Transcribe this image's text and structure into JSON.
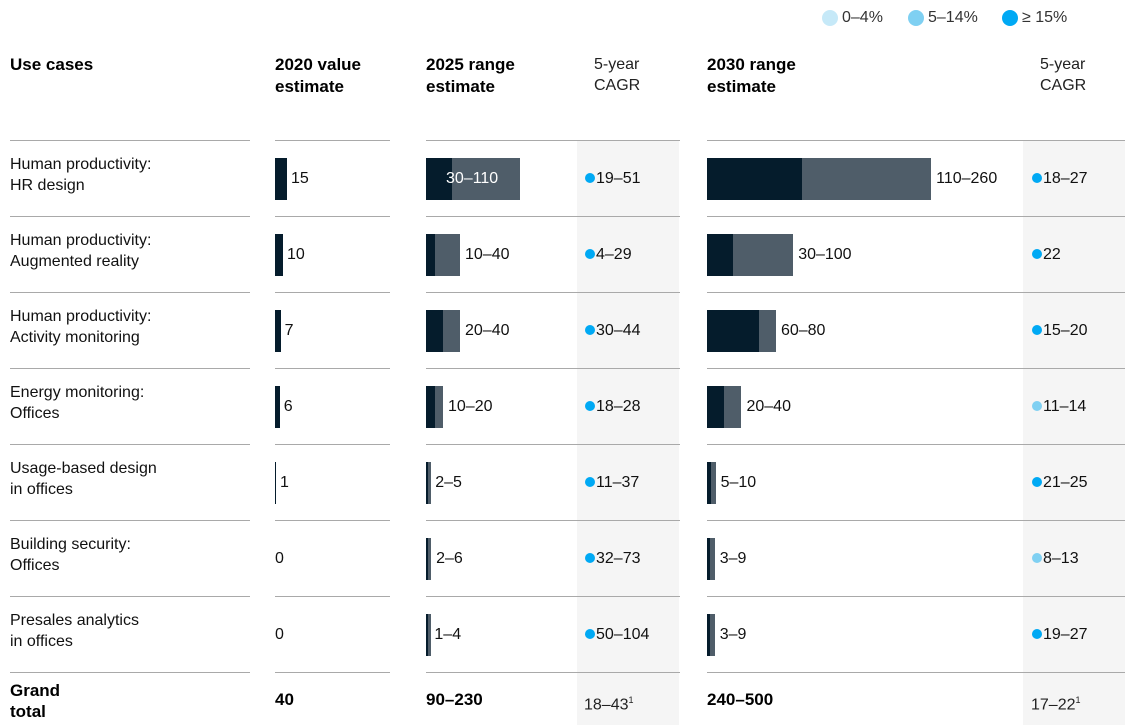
{
  "legend": [
    {
      "label": "0–4%",
      "color": "#c6e9f8"
    },
    {
      "label": "5–14%",
      "color": "#7fd0f2"
    },
    {
      "label": "≥ 15%",
      "color": "#00a9f4"
    }
  ],
  "headers": {
    "use_cases": "Use cases",
    "value2020": [
      "2020 value",
      "estimate"
    ],
    "range2025": [
      "2025 range",
      "estimate"
    ],
    "cagr2025": [
      "5-year",
      "CAGR"
    ],
    "range2030": [
      "2030 range",
      "estimate"
    ],
    "cagr2030": [
      "5-year",
      "CAGR"
    ]
  },
  "colors": {
    "bar_low": "#051c2c",
    "bar_high": "#4f5d69",
    "cagr_shade": "#f5f5f5"
  },
  "chart_data": {
    "type": "table",
    "columns": [
      "Use cases",
      "2020 value estimate",
      "2025 range estimate",
      "5-year CAGR",
      "2030 range estimate",
      "5-year CAGR"
    ],
    "rows": [
      {
        "label": [
          "Human productivity:",
          "HR design"
        ],
        "v2020": 15,
        "r2025": [
          30,
          110
        ],
        "r2025_text": "30–110",
        "c2025": "19–51",
        "c2025_band": "high",
        "r2030": [
          110,
          260
        ],
        "r2030_text": "110–260",
        "c2030": "18–27",
        "c2030_band": "high"
      },
      {
        "label": [
          "Human productivity:",
          "Augmented reality"
        ],
        "v2020": 10,
        "r2025": [
          10,
          40
        ],
        "r2025_text": "10–40",
        "c2025": "4–29",
        "c2025_band": "high",
        "r2030": [
          30,
          100
        ],
        "r2030_text": "30–100",
        "c2030": "22",
        "c2030_band": "high"
      },
      {
        "label": [
          "Human productivity:",
          "Activity monitoring"
        ],
        "v2020": 7,
        "r2025": [
          20,
          40
        ],
        "r2025_text": "20–40",
        "c2025": "30–44",
        "c2025_band": "high",
        "r2030": [
          60,
          80
        ],
        "r2030_text": "60–80",
        "c2030": "15–20",
        "c2030_band": "high"
      },
      {
        "label": [
          "Energy monitoring:",
          "Offices"
        ],
        "v2020": 6,
        "r2025": [
          10,
          20
        ],
        "r2025_text": "10–20",
        "c2025": "18–28",
        "c2025_band": "high",
        "r2030": [
          20,
          40
        ],
        "r2030_text": "20–40",
        "c2030": "11–14",
        "c2030_band": "mid"
      },
      {
        "label": [
          "Usage-based design",
          "in offices"
        ],
        "v2020": 1,
        "r2025": [
          2,
          5
        ],
        "r2025_text": "2–5",
        "c2025": "11–37",
        "c2025_band": "high",
        "r2030": [
          5,
          10
        ],
        "r2030_text": "5–10",
        "c2030": "21–25",
        "c2030_band": "high"
      },
      {
        "label": [
          "Building security:",
          "Offices"
        ],
        "v2020": 0,
        "r2025": [
          2,
          6
        ],
        "r2025_text": "2–6",
        "c2025": "32–73",
        "c2025_band": "high",
        "r2030": [
          3,
          9
        ],
        "r2030_text": "3–9",
        "c2030": "8–13",
        "c2030_band": "mid"
      },
      {
        "label": [
          "Presales analytics",
          "in offices"
        ],
        "v2020": 0,
        "r2025": [
          1,
          4
        ],
        "r2025_text": "1–4",
        "c2025": "50–104",
        "c2025_band": "high",
        "r2030": [
          3,
          9
        ],
        "r2030_text": "3–9",
        "c2030": "19–27",
        "c2030_band": "high"
      }
    ],
    "total": {
      "label": [
        "Grand",
        "total"
      ],
      "v2020": "40",
      "r2025": "90–230",
      "c2025": "18–43",
      "c2025_note": "1",
      "r2030": "240–500",
      "c2030": "17–22",
      "c2030_note": "1"
    }
  }
}
